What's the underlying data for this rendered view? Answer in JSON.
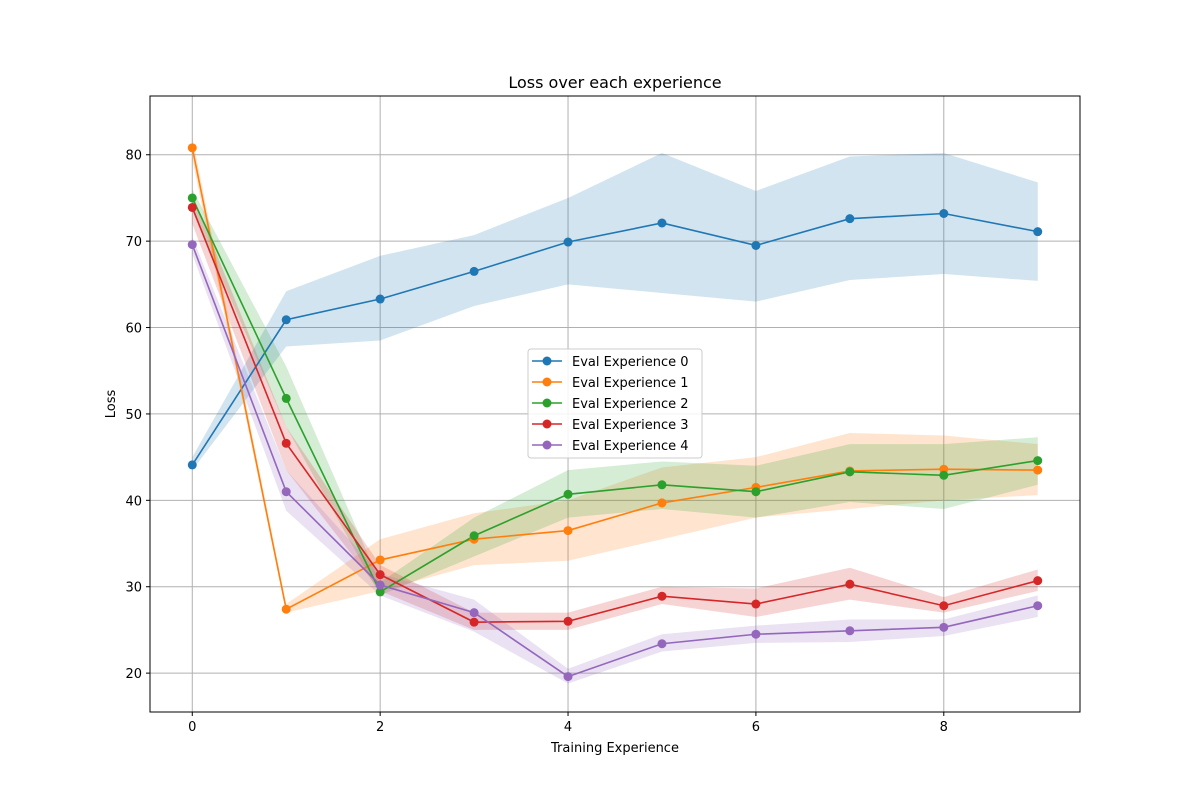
{
  "chart_data": {
    "type": "line",
    "title": "Loss over each experience",
    "xlabel": "Training Experience",
    "ylabel": "Loss",
    "x": [
      0,
      1,
      2,
      3,
      4,
      5,
      6,
      7,
      8,
      9
    ],
    "xlim": [
      -0.45,
      9.45
    ],
    "ylim": [
      15.5,
      86.8
    ],
    "xticks": [
      0,
      2,
      4,
      6,
      8
    ],
    "yticks": [
      20,
      30,
      40,
      50,
      60,
      70,
      80
    ],
    "grid": true,
    "legend_position": "center",
    "series": [
      {
        "name": "Eval Experience 0",
        "color": "#1f77b4",
        "values": [
          44.1,
          60.9,
          63.3,
          66.5,
          69.9,
          72.1,
          69.5,
          72.6,
          73.2,
          71.1
        ],
        "lower": [
          43.5,
          57.8,
          58.5,
          62.5,
          65.0,
          64.0,
          63.0,
          65.5,
          66.2,
          65.4
        ],
        "upper": [
          45.0,
          64.2,
          68.3,
          70.7,
          75.0,
          80.2,
          75.8,
          79.8,
          80.2,
          76.8
        ]
      },
      {
        "name": "Eval Experience 1",
        "color": "#ff7f0e",
        "values": [
          80.8,
          27.4,
          33.1,
          35.5,
          36.5,
          39.7,
          41.5,
          43.4,
          43.6,
          43.5
        ],
        "lower": [
          79.5,
          27.0,
          29.5,
          32.5,
          33.0,
          35.5,
          38.0,
          39.0,
          40.0,
          40.6
        ],
        "upper": [
          82.0,
          28.0,
          35.5,
          38.5,
          40.0,
          43.8,
          45.0,
          47.8,
          47.5,
          46.5
        ]
      },
      {
        "name": "Eval Experience 2",
        "color": "#2ca02c",
        "values": [
          75.0,
          51.8,
          29.4,
          35.9,
          40.7,
          41.8,
          41.0,
          43.3,
          42.9,
          44.6
        ],
        "lower": [
          73.5,
          48.5,
          29.0,
          33.5,
          38.0,
          39.0,
          38.0,
          39.8,
          39.0,
          41.8
        ],
        "upper": [
          76.0,
          55.5,
          30.5,
          38.0,
          43.5,
          44.5,
          44.0,
          46.5,
          46.5,
          47.3
        ]
      },
      {
        "name": "Eval Experience 3",
        "color": "#d62728",
        "values": [
          73.9,
          46.6,
          31.4,
          25.9,
          26.0,
          28.9,
          28.0,
          30.3,
          27.8,
          30.7
        ],
        "lower": [
          72.0,
          43.5,
          29.5,
          25.0,
          25.0,
          28.0,
          26.5,
          28.5,
          27.0,
          29.5
        ],
        "upper": [
          75.5,
          48.5,
          32.5,
          27.0,
          27.0,
          30.0,
          29.8,
          32.2,
          28.8,
          32.0
        ]
      },
      {
        "name": "Eval Experience 4",
        "color": "#9467bd",
        "values": [
          69.6,
          41.0,
          30.2,
          27.0,
          19.6,
          23.4,
          24.5,
          24.9,
          25.3,
          27.8
        ],
        "lower": [
          68.5,
          38.8,
          29.0,
          24.8,
          18.8,
          22.5,
          23.5,
          23.6,
          24.3,
          26.5
        ],
        "upper": [
          70.5,
          43.5,
          31.5,
          28.5,
          20.5,
          24.5,
          25.5,
          26.2,
          26.2,
          29.0
        ]
      }
    ]
  }
}
